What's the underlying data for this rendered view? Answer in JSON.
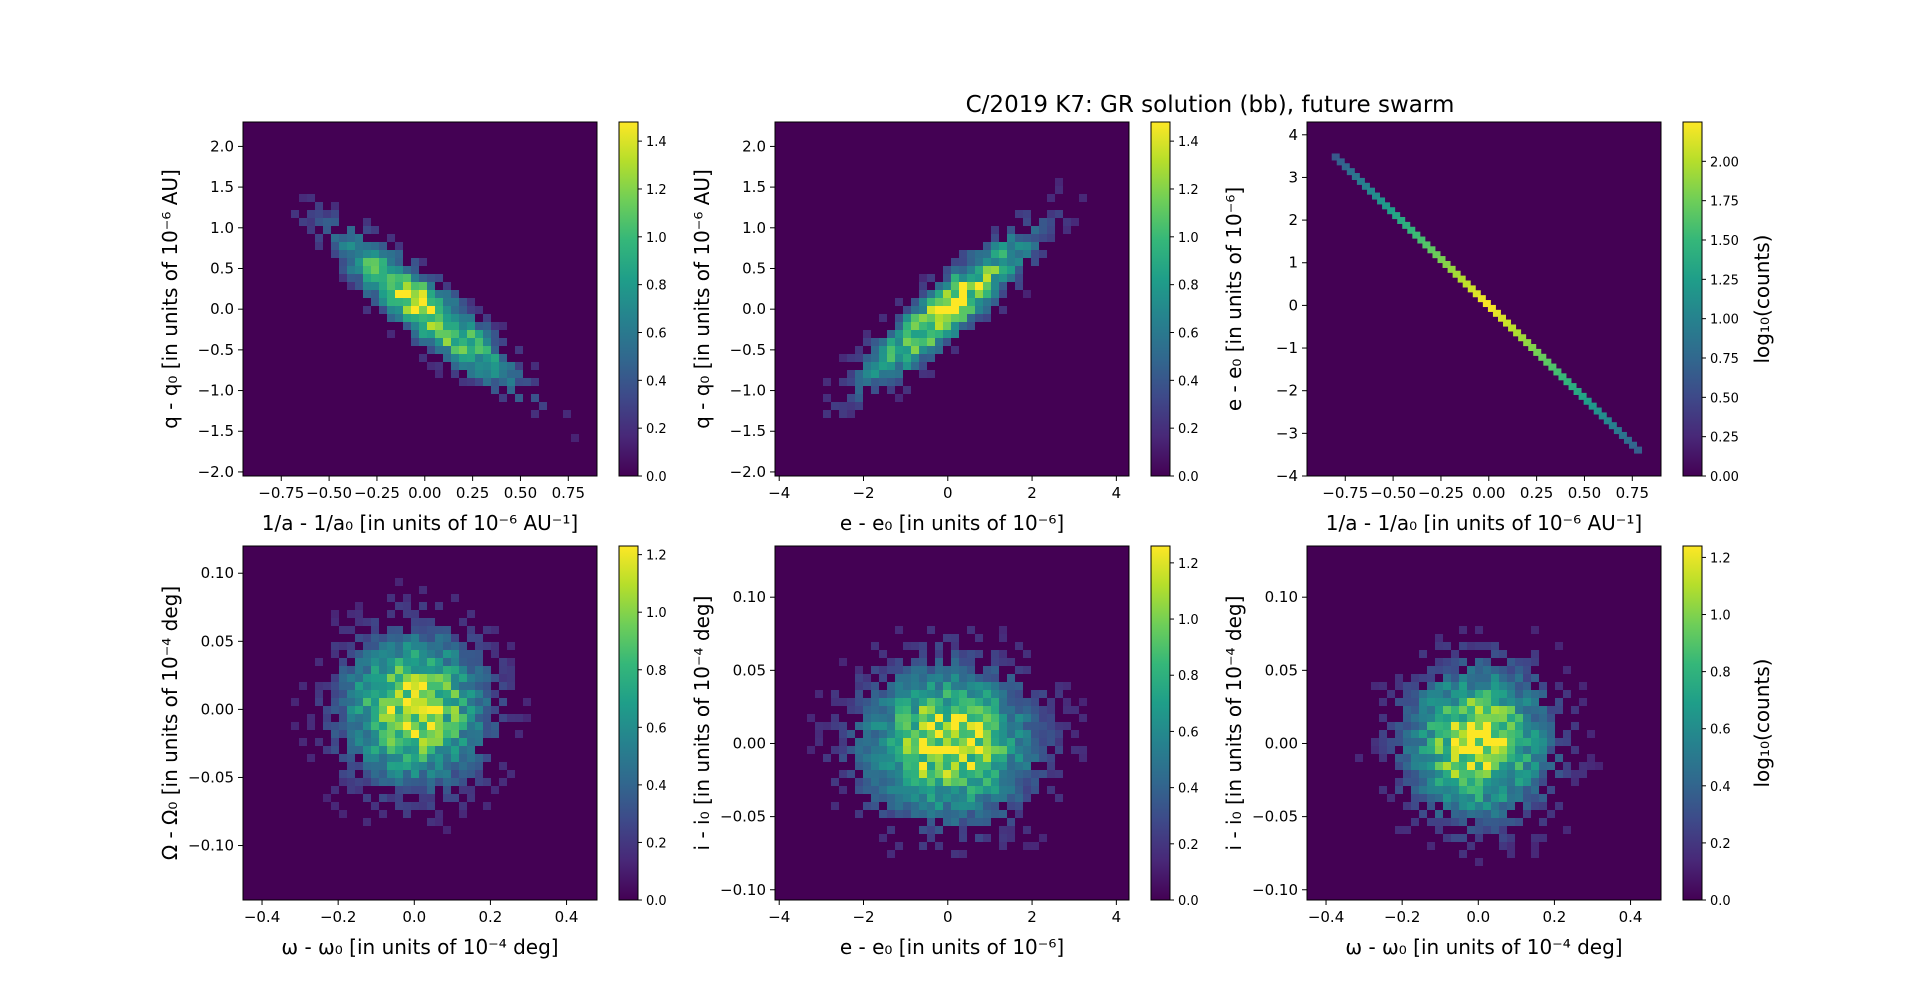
{
  "figure": {
    "title": "C/2019 K7: GR solution (bb), future swarm"
  },
  "colormap": [
    "#440154",
    "#482878",
    "#3e4989",
    "#31688e",
    "#26828e",
    "#1f9e89",
    "#35b779",
    "#6ece58",
    "#b5de2b",
    "#fde725"
  ],
  "chart_data": [
    {
      "type": "heatmap",
      "xlabel": "1/a - 1/a₀ [in units of 10⁻⁶ AU⁻¹]",
      "ylabel": "q - q₀ [in units of 10⁻⁶ AU]",
      "xlim": [
        -0.95,
        0.9
      ],
      "ylim": [
        -2.05,
        2.3
      ],
      "xticks": [
        -0.75,
        -0.5,
        -0.25,
        0.0,
        0.25,
        0.5,
        0.75
      ],
      "xticklabels": [
        "−0.75",
        "−0.50",
        "−0.25",
        "0.00",
        "0.25",
        "0.50",
        "0.75"
      ],
      "yticks": [
        -2.0,
        -1.5,
        -1.0,
        -0.5,
        0.0,
        0.5,
        1.0,
        1.5,
        2.0
      ],
      "yticklabels": [
        "−2.0",
        "−1.5",
        "−1.0",
        "−0.5",
        "0.0",
        "0.5",
        "1.0",
        "1.5",
        "2.0"
      ],
      "correlation": -0.9,
      "spread": [
        0.3,
        0.6
      ],
      "colorbar": {
        "label": "",
        "range": [
          0,
          1.48
        ],
        "ticks": [
          0,
          0.2,
          0.4,
          0.6,
          0.8,
          1.0,
          1.2,
          1.4
        ],
        "ticklabels": [
          "0.0",
          "0.2",
          "0.4",
          "0.6",
          "0.8",
          "1.0",
          "1.2",
          "1.4"
        ]
      }
    },
    {
      "type": "heatmap",
      "xlabel": "e - e₀ [in units of 10⁻⁶]",
      "ylabel": "q - q₀ [in units of 10⁻⁶ AU]",
      "xlim": [
        -4.1,
        4.3
      ],
      "ylim": [
        -2.05,
        2.3
      ],
      "xticks": [
        -4,
        -2,
        0,
        2,
        4
      ],
      "xticklabels": [
        "−4",
        "−2",
        "0",
        "2",
        "4"
      ],
      "yticks": [
        -2.0,
        -1.5,
        -1.0,
        -0.5,
        0.0,
        0.5,
        1.0,
        1.5,
        2.0
      ],
      "yticklabels": [
        "−2.0",
        "−1.5",
        "−1.0",
        "−0.5",
        "0.0",
        "0.5",
        "1.0",
        "1.5",
        "2.0"
      ],
      "correlation": 0.9,
      "spread": [
        1.3,
        0.6
      ],
      "colorbar": {
        "label": "",
        "range": [
          0,
          1.48
        ],
        "ticks": [
          0,
          0.2,
          0.4,
          0.6,
          0.8,
          1.0,
          1.2,
          1.4
        ],
        "ticklabels": [
          "0.0",
          "0.2",
          "0.4",
          "0.6",
          "0.8",
          "1.0",
          "1.2",
          "1.4"
        ]
      }
    },
    {
      "type": "heatmap",
      "xlabel": "1/a - 1/a₀ [in units of 10⁻⁶ AU⁻¹]",
      "ylabel": "e - e₀ [in units of 10⁻⁶]",
      "xlim": [
        -0.95,
        0.9
      ],
      "ylim": [
        -4.0,
        4.3
      ],
      "xticks": [
        -0.75,
        -0.5,
        -0.25,
        0.0,
        0.25,
        0.5,
        0.75
      ],
      "xticklabels": [
        "−0.75",
        "−0.50",
        "−0.25",
        "0.00",
        "0.25",
        "0.50",
        "0.75"
      ],
      "yticks": [
        -4,
        -3,
        -2,
        -1,
        0,
        1,
        2,
        3,
        4
      ],
      "yticklabels": [
        "−4",
        "−3",
        "−2",
        "−1",
        "0",
        "1",
        "2",
        "3",
        "4"
      ],
      "line": {
        "slope": -4.35,
        "xrange": [
          -0.8,
          0.78
        ]
      },
      "colorbar": {
        "label": "log₁₀(counts)",
        "range": [
          0,
          2.25
        ],
        "ticks": [
          0,
          0.25,
          0.5,
          0.75,
          1.0,
          1.25,
          1.5,
          1.75,
          2.0
        ],
        "ticklabels": [
          "0.00",
          "0.25",
          "0.50",
          "0.75",
          "1.00",
          "1.25",
          "1.50",
          "1.75",
          "2.00"
        ]
      }
    },
    {
      "type": "heatmap",
      "xlabel": "ω - ω₀ [in units of 10⁻⁴ deg]",
      "ylabel": "Ω - Ω₀ [in units of 10⁻⁴ deg]",
      "xlim": [
        -0.45,
        0.48
      ],
      "ylim": [
        -0.14,
        0.12
      ],
      "xticks": [
        -0.4,
        -0.2,
        0.0,
        0.2,
        0.4
      ],
      "xticklabels": [
        "−0.4",
        "−0.2",
        "0.0",
        "0.2",
        "0.4"
      ],
      "yticks": [
        -0.1,
        -0.05,
        0.0,
        0.05,
        0.1
      ],
      "yticklabels": [
        "−0.10",
        "−0.05",
        "0.00",
        "0.05",
        "0.10"
      ],
      "correlation": 0.0,
      "spread": [
        0.12,
        0.035
      ],
      "colorbar": {
        "label": "",
        "range": [
          0,
          1.23
        ],
        "ticks": [
          0,
          0.2,
          0.4,
          0.6,
          0.8,
          1.0,
          1.2
        ],
        "ticklabels": [
          "0.0",
          "0.2",
          "0.4",
          "0.6",
          "0.8",
          "1.0",
          "1.2"
        ]
      }
    },
    {
      "type": "heatmap",
      "xlabel": "e - e₀ [in units of 10⁻⁶]",
      "ylabel": "i - i₀ [in units of 10⁻⁴ deg]",
      "xlim": [
        -4.1,
        4.3
      ],
      "ylim": [
        -0.107,
        0.135
      ],
      "xticks": [
        -4,
        -2,
        0,
        2,
        4
      ],
      "xticklabels": [
        "−4",
        "−2",
        "0",
        "2",
        "4"
      ],
      "yticks": [
        -0.1,
        -0.05,
        0.0,
        0.05,
        0.1
      ],
      "yticklabels": [
        "−0.10",
        "−0.05",
        "0.00",
        "0.05",
        "0.10"
      ],
      "correlation": 0.0,
      "spread": [
        1.3,
        0.033
      ],
      "colorbar": {
        "label": "",
        "range": [
          0,
          1.26
        ],
        "ticks": [
          0,
          0.2,
          0.4,
          0.6,
          0.8,
          1.0,
          1.2
        ],
        "ticklabels": [
          "0.0",
          "0.2",
          "0.4",
          "0.6",
          "0.8",
          "1.0",
          "1.2"
        ]
      }
    },
    {
      "type": "heatmap",
      "xlabel": "ω - ω₀ [in units of 10⁻⁴ deg]",
      "ylabel": "i - i₀ [in units of 10⁻⁴ deg]",
      "xlim": [
        -0.45,
        0.48
      ],
      "ylim": [
        -0.107,
        0.135
      ],
      "xticks": [
        -0.4,
        -0.2,
        0.0,
        0.2,
        0.4
      ],
      "xticklabels": [
        "−0.4",
        "−0.2",
        "0.0",
        "0.2",
        "0.4"
      ],
      "yticks": [
        -0.1,
        -0.05,
        0.0,
        0.05,
        0.1
      ],
      "yticklabels": [
        "−0.10",
        "−0.05",
        "0.00",
        "0.05",
        "0.10"
      ],
      "correlation": 0.0,
      "spread": [
        0.12,
        0.033
      ],
      "colorbar": {
        "label": "log₁₀(counts)",
        "range": [
          0,
          1.24
        ],
        "ticks": [
          0,
          0.2,
          0.4,
          0.6,
          0.8,
          1.0,
          1.2
        ],
        "ticklabels": [
          "0.0",
          "0.2",
          "0.4",
          "0.6",
          "0.8",
          "1.0",
          "1.2"
        ]
      }
    }
  ]
}
